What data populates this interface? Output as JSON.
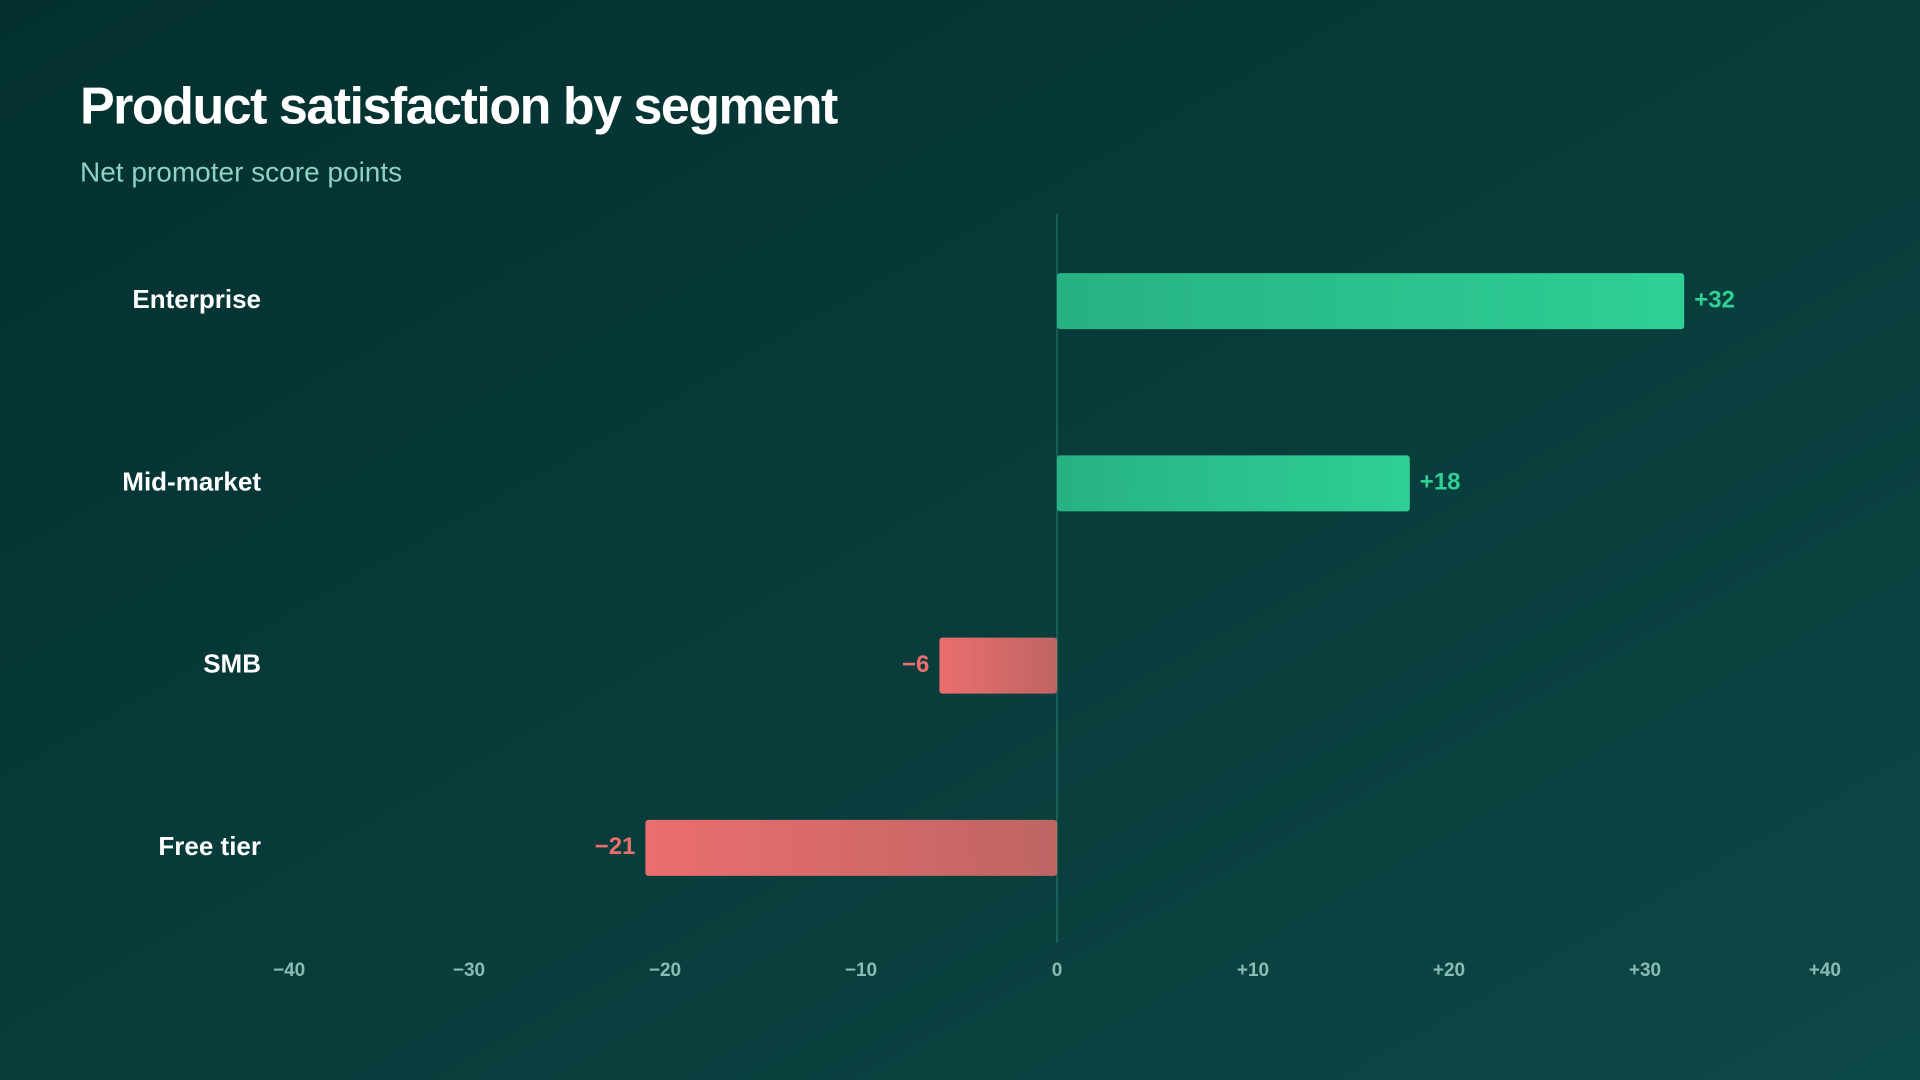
{
  "chart_data": {
    "type": "hbar",
    "title": "Product satisfaction by segment",
    "subtitle": "Net promoter score points",
    "categories": [
      "Enterprise",
      "Mid-market",
      "SMB",
      "Free tier"
    ],
    "values": [
      32,
      18,
      -6,
      -21
    ],
    "value_labels": [
      "+32",
      "+18",
      "−6",
      "−21"
    ],
    "colors": [
      "#2fcf95",
      "#2fcf95",
      "#ec6e6e",
      "#ec6e6e"
    ],
    "xlim": [
      -40,
      40
    ],
    "xticks": [
      {
        "value": -40,
        "label": "−40"
      },
      {
        "value": -30,
        "label": "−30"
      },
      {
        "value": -20,
        "label": "−20"
      },
      {
        "value": -10,
        "label": "−10"
      },
      0,
      {
        "value": 10,
        "label": "+10"
      },
      {
        "value": 20,
        "label": "+20"
      },
      {
        "value": 30,
        "label": "+30"
      },
      {
        "value": 40,
        "label": "+40"
      }
    ]
  }
}
